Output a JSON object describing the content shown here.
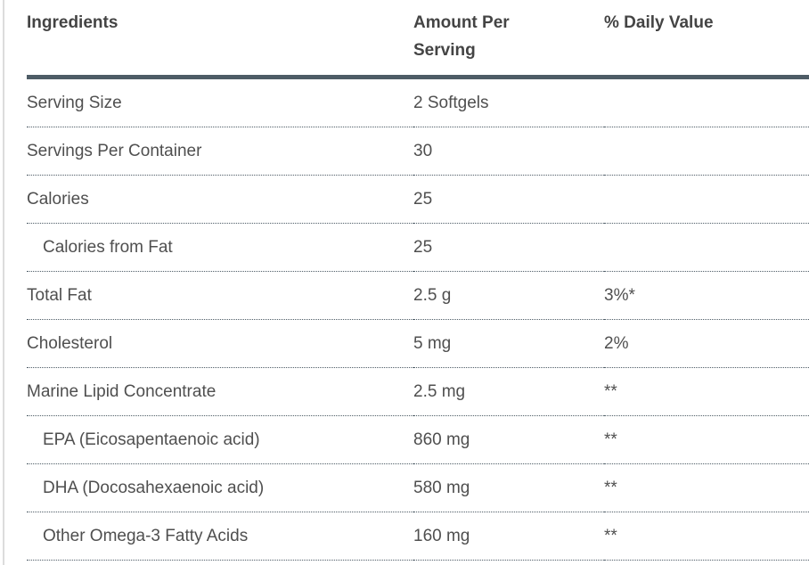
{
  "table": {
    "columns": [
      {
        "label": "Ingredients"
      },
      {
        "label": "Amount Per Serving"
      },
      {
        "label": "% Daily Value"
      }
    ],
    "rows": [
      {
        "ingredient": "Serving Size",
        "amount": "2 Softgels",
        "daily_value": ""
      },
      {
        "ingredient": "Servings Per Container",
        "amount": "30",
        "daily_value": ""
      },
      {
        "ingredient": "Calories",
        "amount": "25",
        "daily_value": ""
      },
      {
        "ingredient": "Calories from Fat",
        "amount": "25",
        "daily_value": ""
      },
      {
        "ingredient": "Total Fat",
        "amount": "2.5 g",
        "daily_value": "3%*"
      },
      {
        "ingredient": "Cholesterol",
        "amount": "5 mg",
        "daily_value": "2%"
      },
      {
        "ingredient": "Marine Lipid Concentrate",
        "amount": "2.5 mg",
        "daily_value": "**"
      },
      {
        "ingredient": "EPA (Eicosapentaenoic acid)",
        "amount": "860 mg",
        "daily_value": "**"
      },
      {
        "ingredient": "DHA (Docosahexaenoic acid)",
        "amount": "580 mg",
        "daily_value": "**"
      },
      {
        "ingredient": "Other Omega-3 Fatty Acids",
        "amount": "160 mg",
        "daily_value": "**"
      }
    ],
    "colors": {
      "header_text": "#444444",
      "body_text": "#4f4f4f",
      "rule": "#4e5c66",
      "left_rule": "#dcdcdc",
      "background": "#ffffff"
    }
  }
}
